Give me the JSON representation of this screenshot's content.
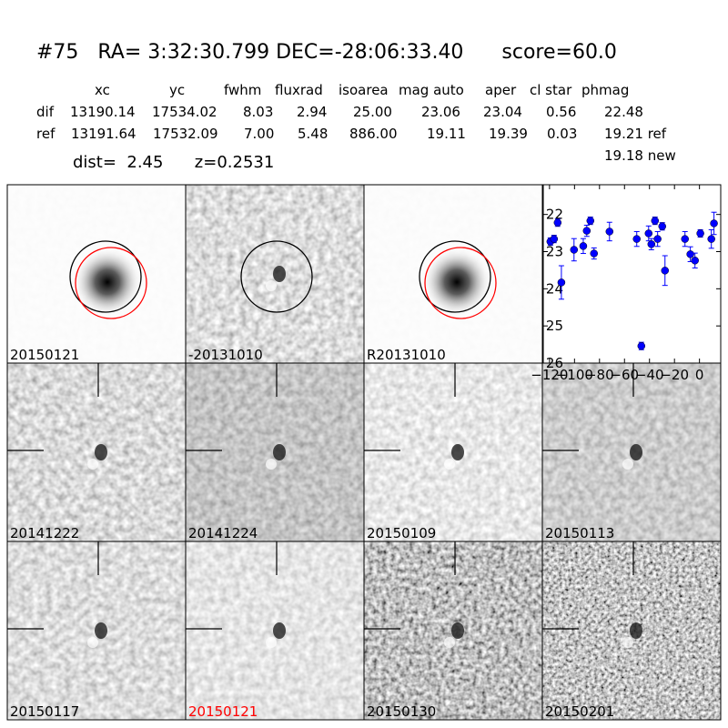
{
  "header": {
    "title": "#75   RA= 3:32:30.799 DEC=-28:06:33.40      score=60.0",
    "dist": "dist=  2.45      z=0.2531",
    "note": "19.18 new"
  },
  "table": {
    "columns": [
      "xc",
      "yc",
      "fwhm",
      "fluxrad",
      "isoarea",
      "mag auto",
      "aper",
      "cl star",
      "phmag"
    ],
    "rows": [
      [
        "dif",
        "13190.14",
        "17534.02",
        "8.03",
        "2.94",
        "25.00",
        "23.06",
        "23.04",
        "0.56",
        "22.48"
      ],
      [
        "ref",
        "13191.64",
        "17532.09",
        "7.00",
        "5.48",
        "886.00",
        "19.11",
        "19.39",
        "0.03",
        "19.21 ref"
      ]
    ]
  },
  "panels": [
    {
      "label": "20150121"
    },
    {
      "label": "-20131010"
    },
    {
      "label": "R20131010"
    },
    {
      "label": null
    },
    {
      "label": "20141222"
    },
    {
      "label": "20141224"
    },
    {
      "label": "20150109"
    },
    {
      "label": "20150113"
    },
    {
      "label": "20150117"
    },
    {
      "label": "20150121"
    },
    {
      "label": "20150130"
    },
    {
      "label": "20150201"
    }
  ],
  "chart_data": {
    "type": "scatter",
    "x": [
      -119.3,
      -116.4,
      -113.5,
      -110.5,
      -100.4,
      -93.0,
      -90.2,
      -87.3,
      -84.4,
      -72.0,
      -50.2,
      -46.5,
      -40.7,
      -38.5,
      -35.6,
      -33.5,
      -29.8,
      -27.6,
      -11.6,
      -7.3,
      -3.6,
      0.7,
      9.5,
      11.6
    ],
    "series": [
      {
        "color": "#0000ff",
        "values": [
          22.73,
          22.66,
          22.22,
          23.83,
          22.95,
          22.85,
          22.44,
          22.17,
          23.05,
          22.46,
          22.66,
          25.54,
          22.51,
          22.8,
          22.17,
          22.66,
          22.32,
          23.51,
          22.66,
          23.07,
          23.24,
          22.51,
          22.66,
          22.24
        ],
        "errors": [
          0.1,
          0.1,
          0.1,
          0.45,
          0.3,
          0.2,
          0.15,
          0.1,
          0.15,
          0.25,
          0.2,
          0.1,
          0.2,
          0.15,
          0.1,
          0.2,
          0.1,
          0.4,
          0.2,
          0.2,
          0.2,
          0.1,
          0.25,
          0.3
        ]
      }
    ],
    "xlim": [
      -125,
      17
    ],
    "ylim": [
      26,
      21.2
    ],
    "xticks": [
      {
        "value": -120,
        "label": "−120"
      },
      {
        "value": -100,
        "label": "−100"
      },
      {
        "value": -80,
        "label": "−80"
      },
      {
        "value": -60,
        "label": "−60"
      },
      {
        "value": -40,
        "label": "−40"
      },
      {
        "value": -20,
        "label": "−20"
      },
      0
    ],
    "yticks": [
      22,
      23,
      24,
      25,
      26
    ]
  }
}
